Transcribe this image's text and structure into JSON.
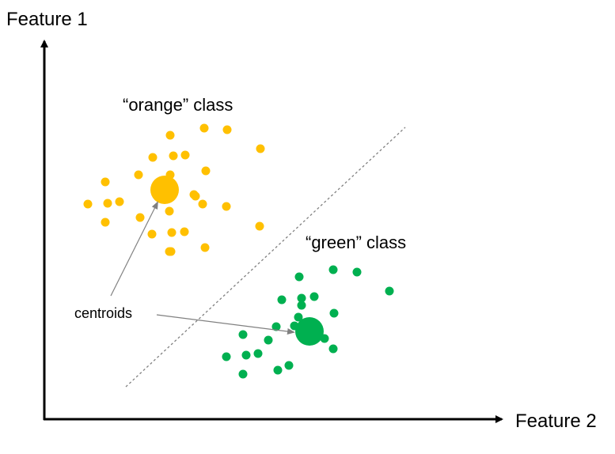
{
  "axes": {
    "y_label": "Feature 1",
    "x_label": "Feature 2"
  },
  "classes": {
    "orange": {
      "label": "“orange” class",
      "color": "#FFC000",
      "point_count": 29
    },
    "green": {
      "label": "“green” class",
      "color": "#00B050",
      "point_count": 22
    }
  },
  "annotation": {
    "centroids_label": "centroids",
    "arrow_color": "#808080"
  },
  "boundary": {
    "style": "dashed",
    "color": "#808080"
  }
}
